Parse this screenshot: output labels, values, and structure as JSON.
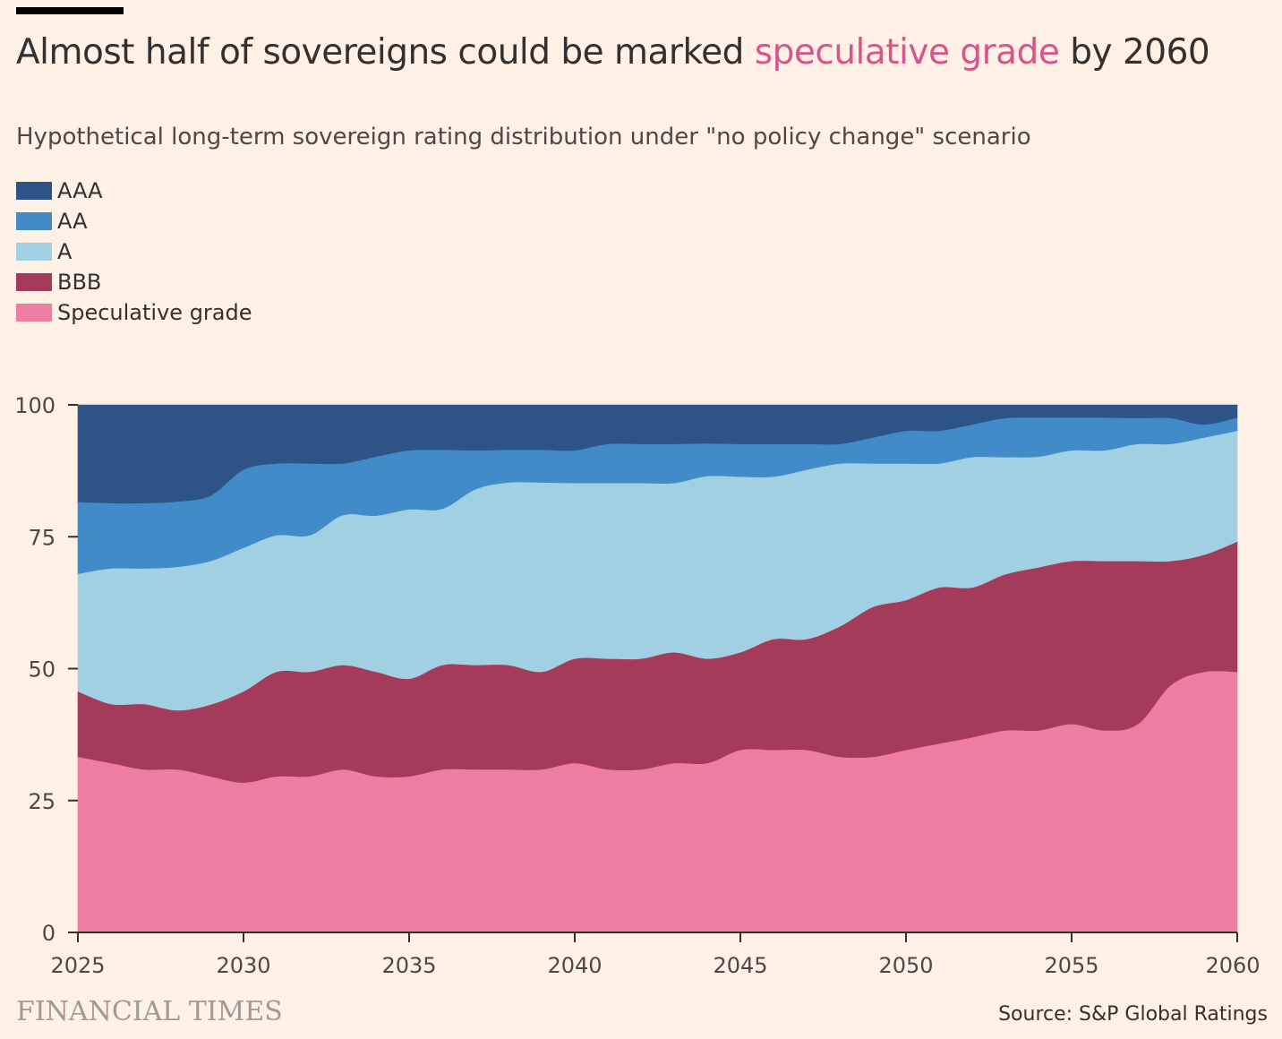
{
  "header": {
    "title_before": "Almost half of sovereigns could be marked ",
    "title_highlight": "speculative grade",
    "title_after": " by 2060",
    "subtitle": "Hypothetical long-term sovereign rating distribution under \"no policy change\" scenario"
  },
  "footer": {
    "brand": "FINANCIAL TIMES",
    "source": "Source: S&P Global Ratings"
  },
  "chart_data": {
    "type": "area",
    "stacked": true,
    "x": [
      2025,
      2026,
      2027,
      2028,
      2029,
      2030,
      2031,
      2032,
      2033,
      2034,
      2035,
      2036,
      2037,
      2038,
      2039,
      2040,
      2041,
      2042,
      2043,
      2044,
      2045,
      2046,
      2047,
      2048,
      2049,
      2050,
      2051,
      2052,
      2053,
      2054,
      2055,
      2056,
      2057,
      2058,
      2059,
      2060
    ],
    "xlim": [
      2025,
      2060
    ],
    "x_ticks": [
      2025,
      2030,
      2035,
      2040,
      2045,
      2050,
      2055,
      2060
    ],
    "ylim": [
      0,
      100
    ],
    "y_ticks": [
      0,
      25,
      50,
      75,
      100
    ],
    "grid": false,
    "legend_position": "top-left",
    "series": [
      {
        "name": "Speculative grade",
        "color": "#EE7DA2",
        "values": [
          33.3,
          32.1,
          30.9,
          30.9,
          29.6,
          28.4,
          29.6,
          29.6,
          30.9,
          29.6,
          29.6,
          30.9,
          30.9,
          30.9,
          30.9,
          32.1,
          30.9,
          30.9,
          32.1,
          32.1,
          34.6,
          34.6,
          34.6,
          33.3,
          33.3,
          34.6,
          35.8,
          37.0,
          38.3,
          38.3,
          39.5,
          38.3,
          39.5,
          46.9,
          49.4,
          49.4
        ]
      },
      {
        "name": "BBB",
        "color": "#A43B5B",
        "values": [
          12.4,
          11.2,
          12.4,
          11.2,
          13.6,
          17.3,
          19.8,
          19.8,
          19.8,
          19.8,
          18.5,
          19.8,
          19.8,
          19.8,
          18.5,
          19.8,
          21.0,
          21.0,
          21.0,
          19.8,
          18.5,
          21.0,
          21.0,
          24.7,
          28.4,
          28.4,
          29.6,
          28.4,
          29.6,
          30.9,
          30.9,
          32.1,
          30.9,
          23.5,
          22.2,
          24.7
        ]
      },
      {
        "name": "A",
        "color": "#A2D0E3",
        "values": [
          22.3,
          25.7,
          25.7,
          27.2,
          27.2,
          27.2,
          25.9,
          25.9,
          28.4,
          29.6,
          32.1,
          29.6,
          33.3,
          34.6,
          35.9,
          33.3,
          33.3,
          33.3,
          32.1,
          34.6,
          33.3,
          30.8,
          32.1,
          30.9,
          27.2,
          25.9,
          23.5,
          24.7,
          22.2,
          21.0,
          21.0,
          21.0,
          22.2,
          22.2,
          22.2,
          21.0
        ]
      },
      {
        "name": "AA",
        "color": "#418BC8",
        "values": [
          13.6,
          12.4,
          12.4,
          12.4,
          12.4,
          14.8,
          13.6,
          13.6,
          9.8,
          11.2,
          11.2,
          11.2,
          7.4,
          6.2,
          6.2,
          6.2,
          7.4,
          7.4,
          7.4,
          6.2,
          6.2,
          6.2,
          4.9,
          3.7,
          4.9,
          6.2,
          6.2,
          6.2,
          7.4,
          7.4,
          6.2,
          6.2,
          4.9,
          4.9,
          2.5,
          2.5
        ]
      },
      {
        "name": "AAA",
        "color": "#2E5487",
        "values": [
          18.4,
          18.6,
          18.6,
          18.3,
          17.2,
          12.3,
          11.1,
          11.1,
          11.1,
          9.8,
          8.6,
          8.5,
          8.6,
          8.5,
          8.5,
          8.6,
          7.4,
          7.4,
          7.4,
          7.3,
          7.4,
          7.4,
          7.4,
          7.4,
          6.2,
          4.9,
          4.9,
          3.7,
          2.5,
          2.4,
          2.4,
          2.4,
          2.5,
          2.5,
          3.7,
          2.4
        ]
      }
    ]
  }
}
